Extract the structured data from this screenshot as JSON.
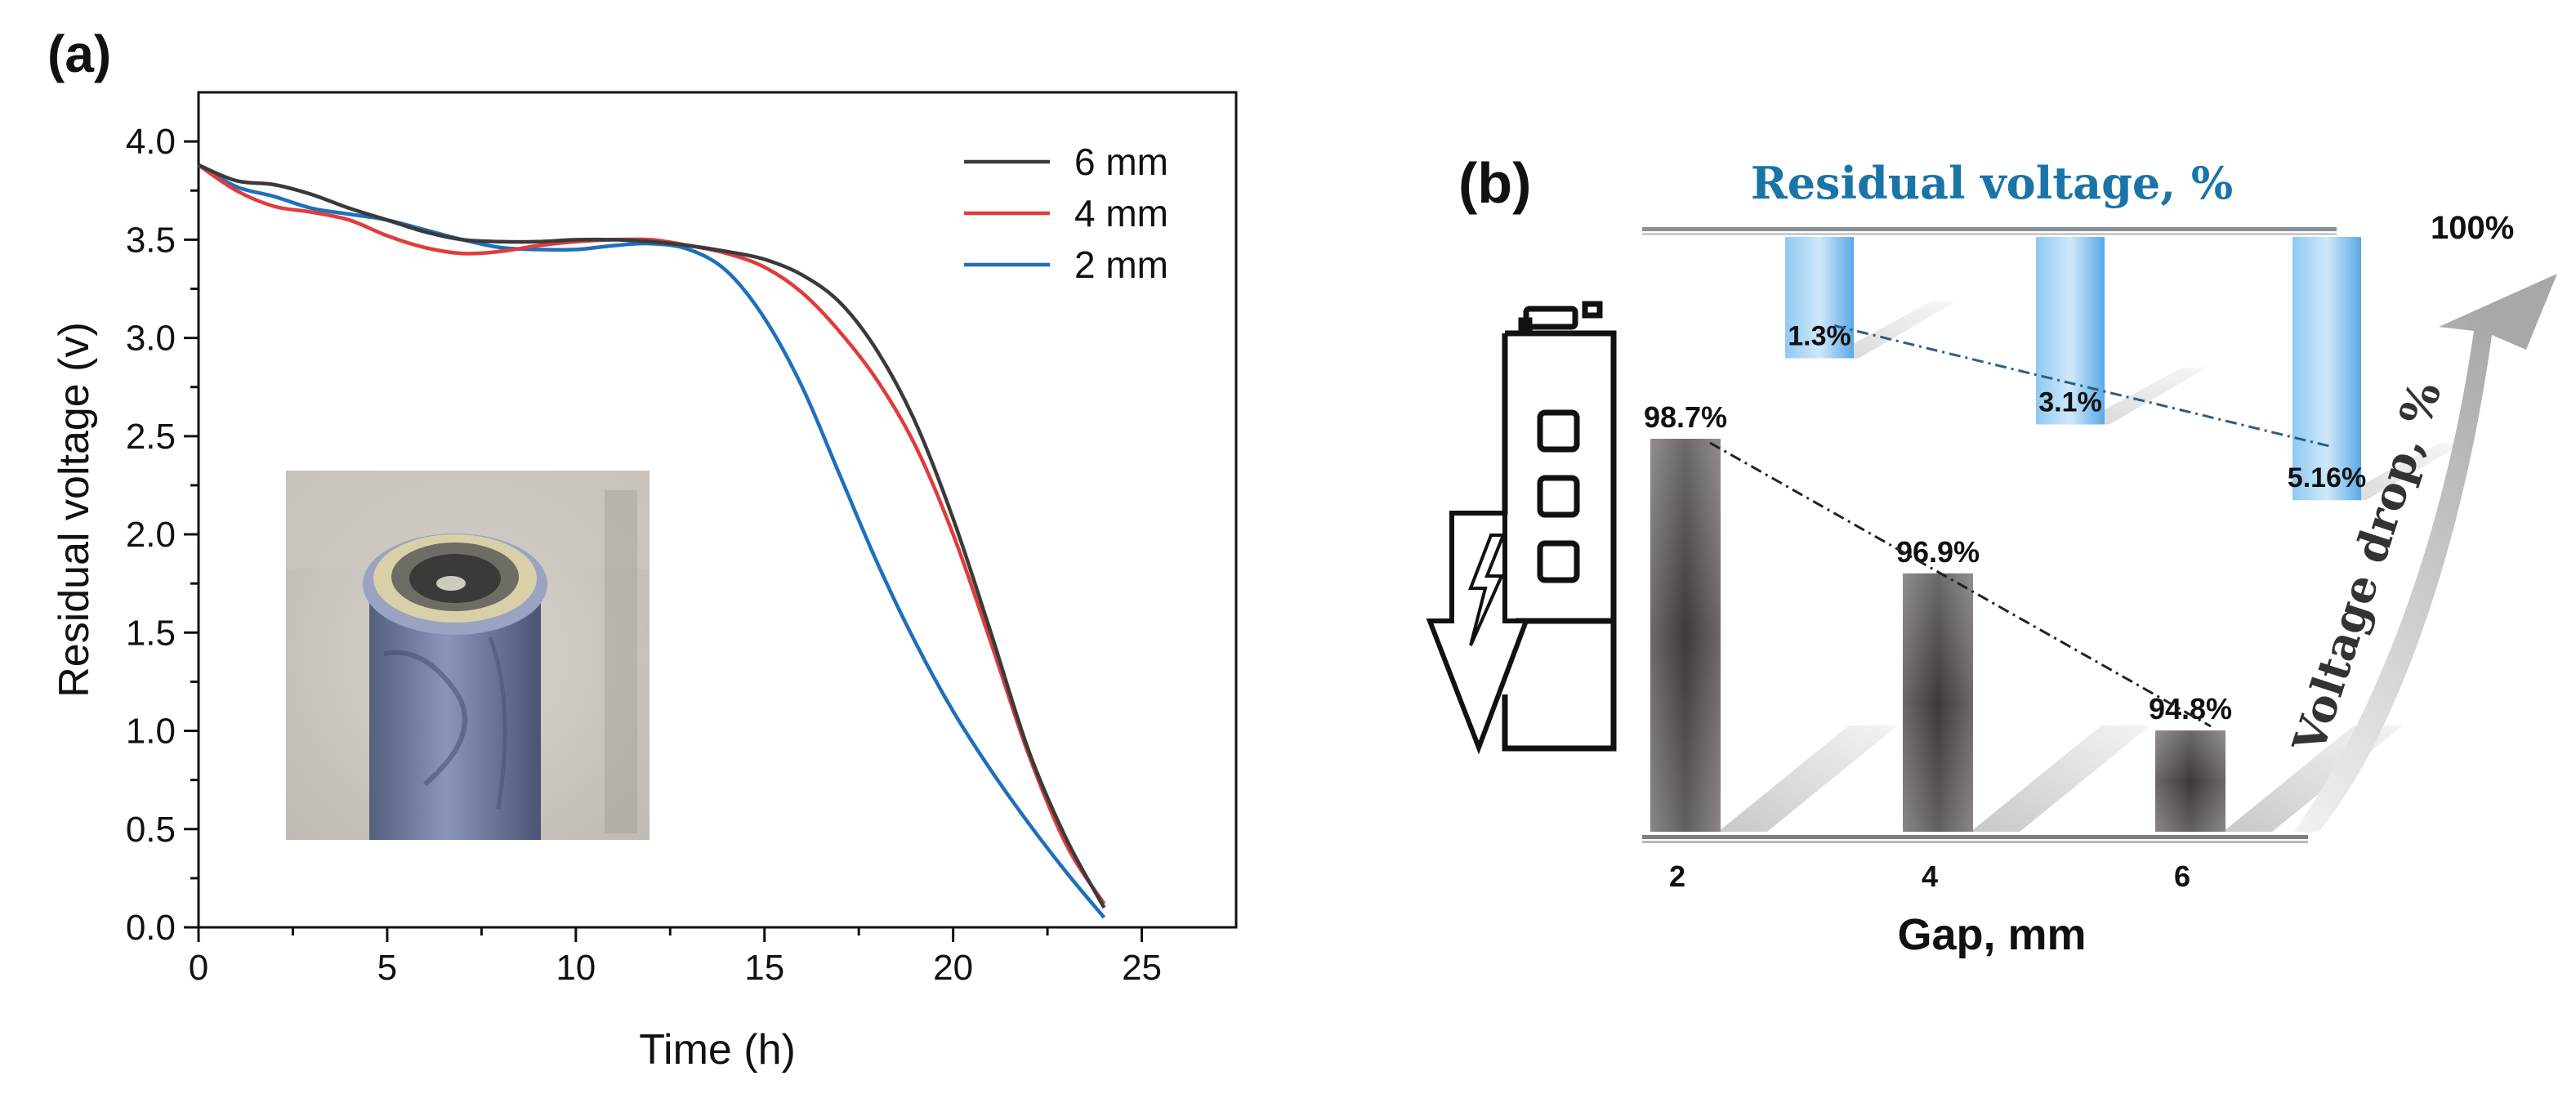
{
  "panel_a": {
    "label": "(a)",
    "inset_photo": "battery-cell-photo"
  },
  "panel_b": {
    "label": "(b)",
    "top_title": "Residual voltage, %",
    "right_label": "Voltage drop, %",
    "hundred_label": "100%",
    "battery_icon": "battery-discharge-icon"
  },
  "colors": {
    "6 mm": "#3a3a3a",
    "4 mm": "#e03c3c",
    "2 mm": "#1f6fbd",
    "residual_bar": "#5a5555",
    "drop_bar": "#5aa9e6",
    "title_blue": "#1a74a8"
  },
  "chart_data": [
    {
      "type": "line",
      "xlabel": "Time (h)",
      "ylabel": "Residual voltage (v)",
      "xlim": [
        0,
        27.5
      ],
      "ylim": [
        0,
        4.25
      ],
      "xticks": [
        0,
        5,
        10,
        15,
        20,
        25
      ],
      "yticks": [
        0.0,
        0.5,
        1.0,
        1.5,
        2.0,
        2.5,
        3.0,
        3.5,
        4.0
      ],
      "grid": false,
      "legend": "top-right",
      "series": [
        {
          "name": "6 mm",
          "x": [
            0,
            1,
            2,
            3,
            4,
            5,
            6,
            7,
            8,
            9,
            10,
            11,
            12,
            13,
            14,
            15,
            16,
            17,
            18,
            19,
            20,
            21,
            22,
            23,
            24
          ],
          "y": [
            3.88,
            3.8,
            3.78,
            3.73,
            3.66,
            3.6,
            3.54,
            3.5,
            3.49,
            3.49,
            3.5,
            3.5,
            3.49,
            3.47,
            3.44,
            3.4,
            3.32,
            3.18,
            2.93,
            2.57,
            2.08,
            1.5,
            0.9,
            0.45,
            0.1
          ]
        },
        {
          "name": "4 mm",
          "x": [
            0,
            1,
            2,
            3,
            4,
            5,
            6,
            7,
            8,
            9,
            10,
            11,
            12,
            13,
            14,
            15,
            16,
            17,
            18,
            19,
            20,
            21,
            22,
            23,
            24
          ],
          "y": [
            3.88,
            3.75,
            3.67,
            3.64,
            3.6,
            3.52,
            3.46,
            3.43,
            3.44,
            3.47,
            3.49,
            3.5,
            3.5,
            3.47,
            3.43,
            3.36,
            3.23,
            3.03,
            2.78,
            2.45,
            2.0,
            1.45,
            0.88,
            0.42,
            0.12
          ]
        },
        {
          "name": "2 mm",
          "x": [
            0,
            1,
            2,
            3,
            4,
            5,
            6,
            7,
            8,
            9,
            10,
            11,
            12,
            13,
            14,
            15,
            16,
            17,
            18,
            19,
            20,
            21,
            22,
            23,
            24
          ],
          "y": [
            3.88,
            3.77,
            3.72,
            3.66,
            3.63,
            3.6,
            3.55,
            3.5,
            3.46,
            3.45,
            3.45,
            3.47,
            3.48,
            3.45,
            3.34,
            3.1,
            2.75,
            2.3,
            1.85,
            1.45,
            1.1,
            0.8,
            0.53,
            0.28,
            0.05
          ]
        }
      ]
    },
    {
      "type": "bar",
      "xlabel": "Gap, mm",
      "categories": [
        "2",
        "4",
        "6"
      ],
      "series": [
        {
          "name": "Residual voltage",
          "values": [
            98.7,
            96.9,
            94.8
          ],
          "labels": [
            "98.7%",
            "96.9%",
            "94.8%"
          ]
        },
        {
          "name": "Voltage drop",
          "values": [
            1.3,
            3.1,
            5.16
          ],
          "labels": [
            "1.3%",
            "3.1%",
            "5.16%"
          ]
        }
      ]
    }
  ]
}
